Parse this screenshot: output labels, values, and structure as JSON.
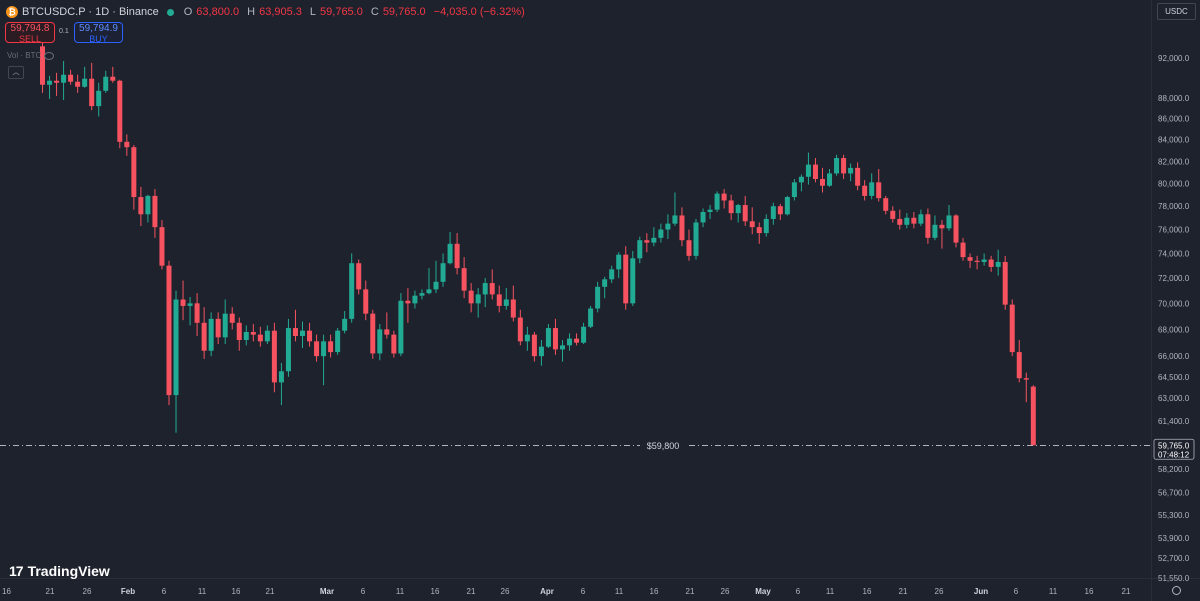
{
  "header": {
    "symbol_title": "BTCUSDC.P · 1D · Binance",
    "coin_glyph": "₿",
    "ohlc": [
      {
        "label": "O",
        "value": "63,800.0"
      },
      {
        "label": "H",
        "value": "63,905.3"
      },
      {
        "label": "L",
        "value": "59,765.0"
      },
      {
        "label": "C",
        "value": "59,765.0"
      },
      {
        "label": "",
        "value": "−4,035.0 (−6.32%)"
      }
    ]
  },
  "trade": {
    "sell_price": "59,794.8",
    "sell_label": "SELL",
    "spread": "0.1",
    "buy_price": "59,794.9",
    "buy_label": "BUY"
  },
  "volume_label": "Vol · BTC",
  "currency_button": "USDC",
  "brand": {
    "mark": "17",
    "name": "TradingView"
  },
  "colors": {
    "up": "#22ab94",
    "down": "#f7525f",
    "background": "#1e222d",
    "text": "#b2b5be"
  },
  "chart_data": {
    "type": "candlestick",
    "symbol": "BTCUSDC.P",
    "interval": "1D",
    "exchange": "Binance",
    "y_axis_labels": [
      "92,000.0",
      "88,000.0",
      "86,000.0",
      "84,000.0",
      "82,000.0",
      "80,000.0",
      "78,000.0",
      "76,000.0",
      "74,000.0",
      "72,000.0",
      "70,000.0",
      "68,000.0",
      "66,000.0",
      "64,500.0",
      "63,000.0",
      "61,400.0",
      "58,200.0",
      "56,700.0",
      "55,300.0",
      "53,900.0",
      "52,700.0",
      "51,550.0"
    ],
    "x_axis_labels": [
      "16",
      "21",
      "26",
      "Feb",
      "6",
      "11",
      "16",
      "21",
      "Mar",
      "6",
      "11",
      "16",
      "21",
      "26",
      "Apr",
      "6",
      "11",
      "16",
      "21",
      "26",
      "May",
      "6",
      "11",
      "16",
      "21",
      "26",
      "Jun",
      "6",
      "11",
      "16",
      "21"
    ],
    "ylim": [
      51500,
      95000
    ],
    "log_scale": true,
    "last_price": {
      "value": "59,765.0",
      "countdown": "07:48:12"
    },
    "horizontal_line": {
      "price": 59800,
      "label": "$59,800"
    },
    "ohlc": [
      [
        93200,
        95000,
        88500,
        89300
      ],
      [
        89300,
        90200,
        87900,
        89700
      ],
      [
        89700,
        90500,
        88200,
        89500
      ],
      [
        89500,
        91700,
        87800,
        90300
      ],
      [
        90300,
        90800,
        89300,
        89600
      ],
      [
        89600,
        90300,
        88500,
        89100
      ],
      [
        89100,
        91100,
        89000,
        89900
      ],
      [
        89900,
        91500,
        86800,
        87200
      ],
      [
        87200,
        89500,
        86200,
        88700
      ],
      [
        88700,
        90700,
        88500,
        90100
      ],
      [
        90100,
        91100,
        89500,
        89700
      ],
      [
        89700,
        89800,
        83200,
        83800
      ],
      [
        83800,
        84500,
        82500,
        83300
      ],
      [
        83300,
        83500,
        77700,
        78800
      ],
      [
        78800,
        79700,
        76300,
        77300
      ],
      [
        77300,
        79000,
        76600,
        78900
      ],
      [
        78900,
        79500,
        75300,
        76200
      ],
      [
        76200,
        76800,
        72700,
        73000
      ],
      [
        73000,
        73400,
        62500,
        63200
      ],
      [
        63200,
        71000,
        60600,
        70300
      ],
      [
        70300,
        71800,
        68700,
        69800
      ],
      [
        69800,
        70500,
        68300,
        70000
      ],
      [
        70000,
        70800,
        67500,
        68500
      ],
      [
        68500,
        69700,
        65800,
        66400
      ],
      [
        66400,
        69300,
        66000,
        68800
      ],
      [
        68800,
        69300,
        66900,
        67400
      ],
      [
        67400,
        70300,
        66900,
        69200
      ],
      [
        69200,
        69700,
        68000,
        68500
      ],
      [
        68500,
        68900,
        66400,
        67200
      ],
      [
        67200,
        68300,
        66800,
        67800
      ],
      [
        67800,
        68400,
        67100,
        67600
      ],
      [
        67600,
        68200,
        66700,
        67100
      ],
      [
        67100,
        68300,
        66900,
        67900
      ],
      [
        67900,
        68500,
        63400,
        64100
      ],
      [
        64100,
        65500,
        62500,
        64900
      ],
      [
        64900,
        68800,
        64500,
        68100
      ],
      [
        68100,
        69500,
        67100,
        67500
      ],
      [
        67500,
        68600,
        66600,
        67900
      ],
      [
        67900,
        68500,
        66700,
        67100
      ],
      [
        67100,
        67600,
        65600,
        66000
      ],
      [
        66000,
        67600,
        63900,
        67100
      ],
      [
        67100,
        67600,
        65900,
        66300
      ],
      [
        66300,
        68100,
        66100,
        67900
      ],
      [
        67900,
        69400,
        67700,
        68800
      ],
      [
        68800,
        74000,
        68500,
        73200
      ],
      [
        73200,
        73500,
        70700,
        71100
      ],
      [
        71100,
        71800,
        68700,
        69200
      ],
      [
        69200,
        69500,
        65800,
        66200
      ],
      [
        66200,
        68400,
        65700,
        68000
      ],
      [
        68000,
        69300,
        67300,
        67600
      ],
      [
        67600,
        67900,
        65900,
        66200
      ],
      [
        66200,
        70800,
        66000,
        70200
      ],
      [
        70200,
        71200,
        68500,
        70000
      ],
      [
        70000,
        71000,
        69600,
        70600
      ],
      [
        70600,
        71100,
        70300,
        70800
      ],
      [
        70800,
        72800,
        70700,
        71100
      ],
      [
        71100,
        73400,
        70800,
        71700
      ],
      [
        71700,
        74000,
        71300,
        73200
      ],
      [
        73200,
        75800,
        73100,
        74800
      ],
      [
        74800,
        75700,
        72300,
        72800
      ],
      [
        72800,
        73700,
        70400,
        71000
      ],
      [
        71000,
        71600,
        69300,
        70000
      ],
      [
        70000,
        71200,
        68900,
        70700
      ],
      [
        70700,
        72000,
        69700,
        71600
      ],
      [
        71600,
        72700,
        70300,
        70700
      ],
      [
        70700,
        71400,
        69300,
        69800
      ],
      [
        69800,
        71200,
        69500,
        70300
      ],
      [
        70300,
        71400,
        68600,
        68900
      ],
      [
        68900,
        69500,
        66800,
        67100
      ],
      [
        67100,
        68200,
        66400,
        67600
      ],
      [
        67600,
        67800,
        65600,
        66000
      ],
      [
        66000,
        67200,
        65300,
        66700
      ],
      [
        66700,
        68400,
        66600,
        68100
      ],
      [
        68100,
        68800,
        66100,
        66500
      ],
      [
        66500,
        67200,
        65600,
        66800
      ],
      [
        66800,
        67700,
        66400,
        67300
      ],
      [
        67300,
        67700,
        66800,
        67000
      ],
      [
        67000,
        68500,
        66900,
        68200
      ],
      [
        68200,
        69800,
        68100,
        69600
      ],
      [
        69600,
        71700,
        69300,
        71300
      ],
      [
        71300,
        72100,
        70400,
        71900
      ],
      [
        71900,
        73000,
        71600,
        72700
      ],
      [
        72700,
        74100,
        72000,
        73900
      ],
      [
        73900,
        74600,
        69500,
        70000
      ],
      [
        70000,
        74200,
        69800,
        73600
      ],
      [
        73600,
        75400,
        73200,
        75100
      ],
      [
        75100,
        75700,
        74100,
        74900
      ],
      [
        74900,
        76200,
        74600,
        75300
      ],
      [
        75300,
        76500,
        74900,
        76000
      ],
      [
        76000,
        77300,
        75200,
        76500
      ],
      [
        76500,
        79200,
        76300,
        77200
      ],
      [
        77200,
        77900,
        74600,
        75100
      ],
      [
        75100,
        76000,
        73400,
        73800
      ],
      [
        73800,
        76900,
        73500,
        76600
      ],
      [
        76600,
        77800,
        76200,
        77500
      ],
      [
        77500,
        78100,
        76900,
        77700
      ],
      [
        77700,
        79300,
        77500,
        79100
      ],
      [
        79100,
        79500,
        77800,
        78500
      ],
      [
        78500,
        79000,
        76800,
        77400
      ],
      [
        77400,
        78200,
        76600,
        78100
      ],
      [
        78100,
        78900,
        76300,
        76700
      ],
      [
        76700,
        77900,
        75600,
        76200
      ],
      [
        76200,
        76600,
        74800,
        75700
      ],
      [
        75700,
        77300,
        75400,
        76900
      ],
      [
        76900,
        78300,
        76400,
        78000
      ],
      [
        78000,
        78200,
        76800,
        77300
      ],
      [
        77300,
        78900,
        77200,
        78800
      ],
      [
        78800,
        80400,
        78500,
        80100
      ],
      [
        80100,
        80800,
        79300,
        80600
      ],
      [
        80600,
        82800,
        79900,
        81700
      ],
      [
        81700,
        82300,
        80100,
        80400
      ],
      [
        80400,
        81400,
        79200,
        79800
      ],
      [
        79800,
        81300,
        79700,
        80900
      ],
      [
        80900,
        82600,
        80700,
        82300
      ],
      [
        82300,
        82600,
        80400,
        80900
      ],
      [
        80900,
        81800,
        80200,
        81400
      ],
      [
        81400,
        81900,
        79400,
        79800
      ],
      [
        79800,
        80300,
        78500,
        78900
      ],
      [
        78900,
        80900,
        78600,
        80100
      ],
      [
        80100,
        81300,
        78400,
        78700
      ],
      [
        78700,
        78900,
        77300,
        77600
      ],
      [
        77600,
        78000,
        76600,
        76900
      ],
      [
        76900,
        77700,
        76000,
        76400
      ],
      [
        76400,
        77400,
        76100,
        77000
      ],
      [
        77000,
        77500,
        76100,
        76500
      ],
      [
        76500,
        77700,
        76300,
        77300
      ],
      [
        77300,
        77800,
        74800,
        75300
      ],
      [
        75300,
        77200,
        75100,
        76400
      ],
      [
        76400,
        76800,
        74400,
        76100
      ],
      [
        76100,
        78100,
        75900,
        77200
      ],
      [
        77200,
        77300,
        74500,
        74900
      ],
      [
        74900,
        75300,
        73400,
        73700
      ],
      [
        73700,
        74000,
        72800,
        73400
      ],
      [
        73400,
        73800,
        72700,
        73300
      ],
      [
        73300,
        74000,
        73000,
        73500
      ],
      [
        73500,
        73800,
        72500,
        72900
      ],
      [
        72900,
        74300,
        72200,
        73300
      ],
      [
        73300,
        73800,
        69500,
        69900
      ],
      [
        69900,
        70300,
        66000,
        66300
      ],
      [
        66300,
        67200,
        64100,
        64400
      ],
      [
        64400,
        64800,
        62700,
        64300
      ],
      [
        63800,
        63905,
        59765,
        59765
      ]
    ]
  }
}
